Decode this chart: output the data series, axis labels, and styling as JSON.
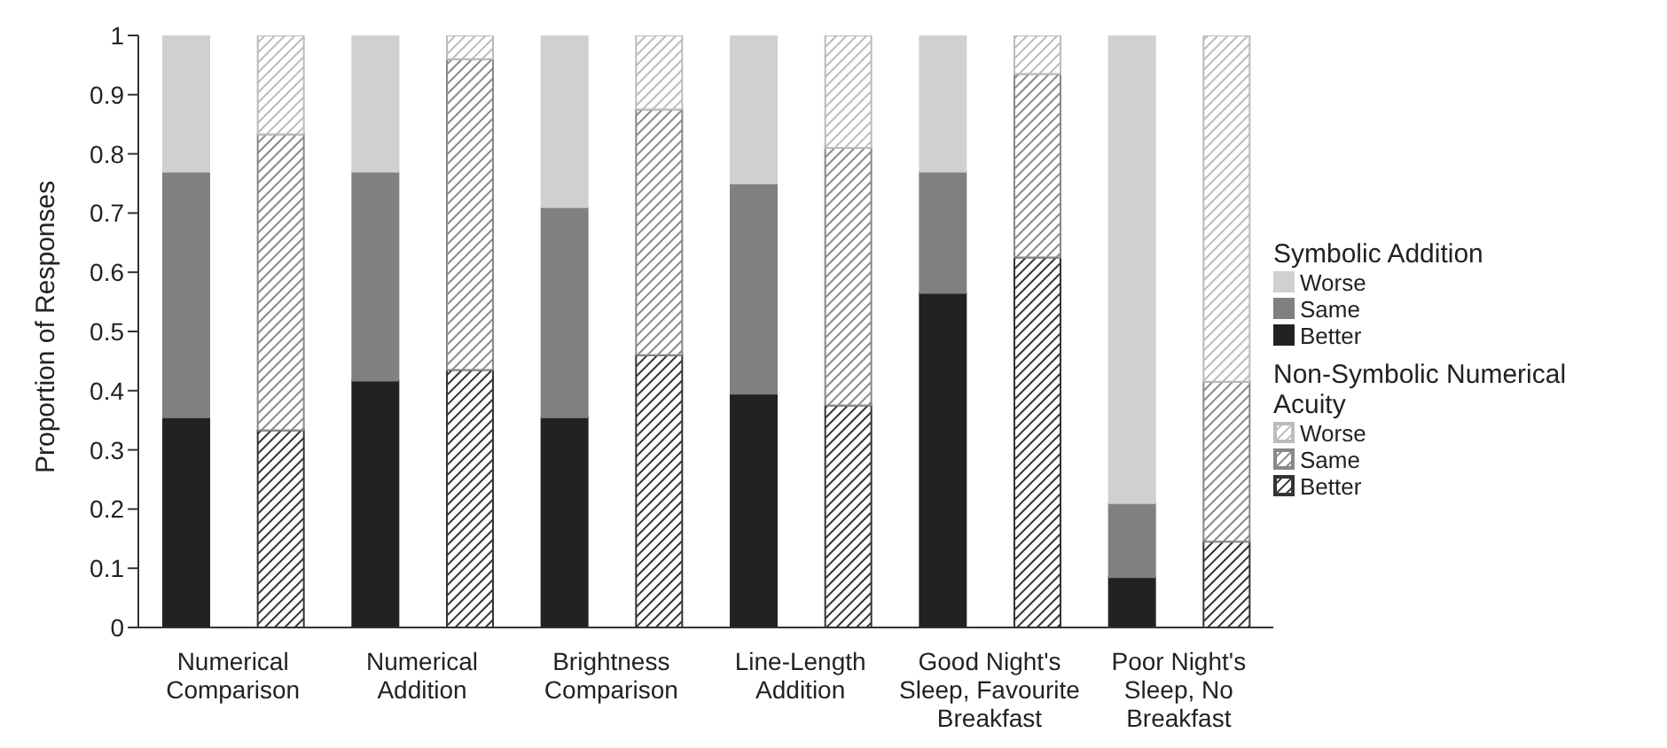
{
  "chart_data": {
    "type": "bar",
    "stacked": true,
    "ylabel": "Proportion of Responses",
    "legend": "right",
    "legend_title": [
      "Symbolic Addition",
      "Non-Symbolic Numerical Acuity"
    ],
    "categories": [
      "Numerical Comparison",
      null,
      "Numerical Addition",
      null,
      "Brightness Comparison",
      null,
      "Line-Length Addition",
      null,
      "Good Night's Sleep, Favourite Breakfast",
      null,
      "Poor Night's Sleep, No Breakfast",
      null
    ],
    "series": [
      {
        "name": "Better",
        "color": "#222222",
        "values": [
          0.355,
          null,
          0.417,
          null,
          0.355,
          null,
          0.395,
          null,
          0.565,
          null,
          0.085,
          null
        ]
      },
      {
        "name": "Same",
        "color": "#808080",
        "values": [
          0.415,
          null,
          0.353,
          null,
          0.355,
          null,
          0.355,
          null,
          0.205,
          null,
          0.125,
          null
        ]
      },
      {
        "name": "Worse",
        "color": "#d0d0d0",
        "values": [
          0.23,
          null,
          0.23,
          null,
          0.29,
          null,
          0.25,
          null,
          0.23,
          null,
          0.79,
          null
        ]
      },
      {
        "name": "Better",
        "color": "#333333",
        "values": [
          null,
          0.333,
          null,
          0.435,
          null,
          0.46,
          null,
          0.375,
          null,
          0.625,
          null,
          0.145
        ]
      },
      {
        "name": "Same",
        "color": "#888888",
        "values": [
          null,
          0.5,
          null,
          0.525,
          null,
          0.415,
          null,
          0.435,
          null,
          0.31,
          null,
          0.27
        ]
      },
      {
        "name": "Worse",
        "color": "#bbbbbb",
        "values": [
          null,
          0.167,
          null,
          0.04,
          null,
          0.125,
          null,
          0.19,
          null,
          0.065,
          null,
          0.585
        ]
      }
    ],
    "ylim": [
      0,
      1
    ],
    "yticks": [
      0,
      0.1,
      0.2,
      0.3,
      0.4,
      0.5,
      0.6,
      0.7,
      0.8,
      0.9,
      1
    ],
    "grid": false
  }
}
